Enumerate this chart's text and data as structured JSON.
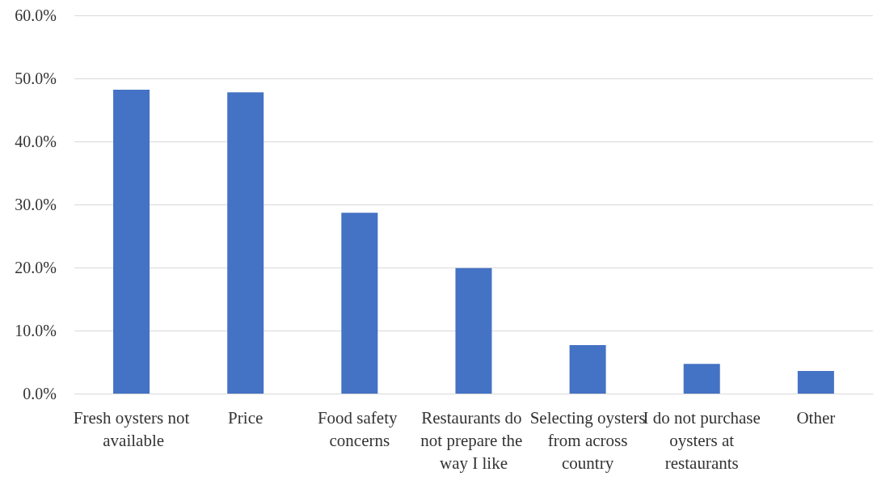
{
  "chart_data": {
    "type": "bar",
    "categories": [
      "Fresh oysters not available",
      "Price",
      "Food safety concerns",
      "Restaurants do not prepare the way I like",
      "Selecting oysters from across country",
      "I do not purchase oysters at restaurants",
      "Other"
    ],
    "values": [
      48.2,
      47.8,
      28.7,
      19.9,
      7.7,
      4.7,
      3.6
    ],
    "color": "#4472c4",
    "ylim": [
      0,
      60
    ],
    "yticks": [
      {
        "value": 0,
        "label": "0.0%"
      },
      {
        "value": 10,
        "label": "10.0%"
      },
      {
        "value": 20,
        "label": "20.0%"
      },
      {
        "value": 30,
        "label": "30.0%"
      },
      {
        "value": 40,
        "label": "40.0%"
      },
      {
        "value": 50,
        "label": "50.0%"
      },
      {
        "value": 60,
        "label": "60.0%"
      }
    ],
    "grid": "y"
  }
}
